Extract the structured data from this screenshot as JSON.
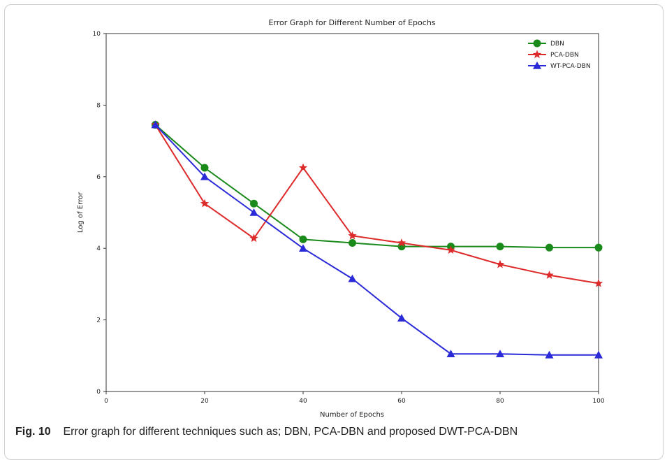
{
  "caption": {
    "label": "Fig. 10",
    "text": "Error graph for different techniques such as; DBN, PCA-DBN and proposed DWT-PCA-DBN"
  },
  "chart_data": {
    "type": "line",
    "title": "Error Graph for Different Number of Epochs",
    "xlabel": "Number of Epochs",
    "ylabel": "Log of Error",
    "xlim": [
      0,
      100
    ],
    "ylim": [
      0,
      10
    ],
    "xticks": [
      0,
      20,
      40,
      60,
      80,
      100
    ],
    "yticks": [
      0,
      2,
      4,
      6,
      8,
      10
    ],
    "grid": false,
    "legend_position": "top-right",
    "x": [
      10,
      20,
      30,
      40,
      50,
      60,
      70,
      80,
      90,
      100
    ],
    "series": [
      {
        "name": "DBN",
        "color": "#1a8a1a",
        "marker": "circle",
        "values": [
          7.45,
          6.25,
          5.25,
          4.25,
          4.15,
          4.05,
          4.05,
          4.05,
          4.02,
          4.02
        ]
      },
      {
        "name": "PCA-DBN",
        "color": "#dd2a2a",
        "marker": "star",
        "values": [
          7.45,
          5.25,
          4.28,
          6.25,
          4.35,
          4.15,
          3.95,
          3.55,
          3.25,
          3.02
        ]
      },
      {
        "name": "WT-PCA-DBN",
        "color": "#2a2ad8",
        "marker": "triangle",
        "values": [
          7.45,
          6.0,
          5.0,
          4.0,
          3.15,
          2.05,
          1.05,
          1.05,
          1.02,
          1.02
        ]
      }
    ]
  }
}
